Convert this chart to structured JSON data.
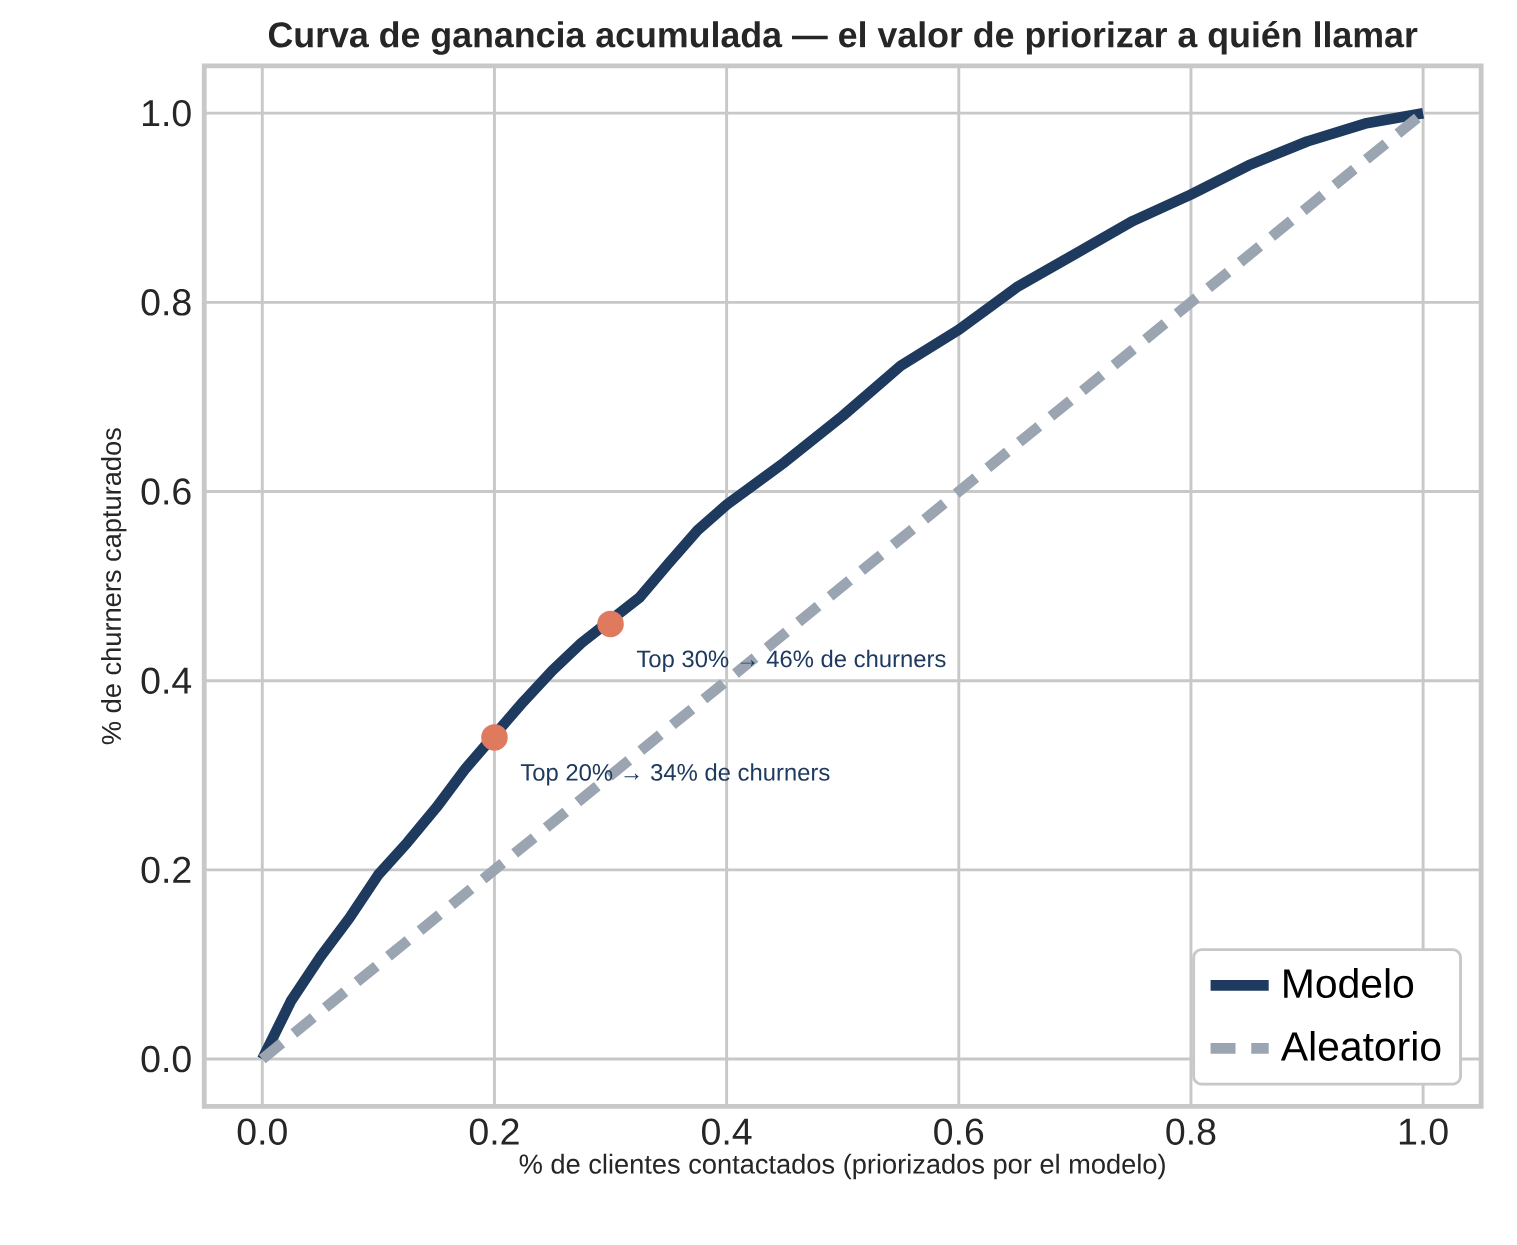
{
  "chart_data": {
    "type": "line",
    "title": "Curva de ganancia acumulada — el valor de priorizar a quién llamar",
    "xlabel": "% de clientes contactados (priorizados por el modelo)",
    "ylabel": "% de churners capturados",
    "xlim": [
      -0.05,
      1.05
    ],
    "ylim": [
      -0.05,
      1.05
    ],
    "xticks": [
      {
        "value": 0,
        "label": "0.0"
      },
      {
        "value": 0.2,
        "label": "0.2"
      },
      {
        "value": 0.4,
        "label": "0.4"
      },
      {
        "value": 0.6,
        "label": "0.6"
      },
      {
        "value": 0.8,
        "label": "0.8"
      },
      {
        "value": 1,
        "label": "1.0"
      }
    ],
    "yticks": [
      {
        "value": 0,
        "label": "0.0"
      },
      {
        "value": 0.2,
        "label": "0.2"
      },
      {
        "value": 0.4,
        "label": "0.4"
      },
      {
        "value": 0.6,
        "label": "0.6"
      },
      {
        "value": 0.8,
        "label": "0.8"
      },
      {
        "value": 1,
        "label": "1.0"
      }
    ],
    "grid": true,
    "legend": "bottom right",
    "series": [
      {
        "name": "Modelo",
        "color": "#1f3a5f",
        "line_style": "solid",
        "x": [
          0,
          0.025,
          0.05,
          0.075,
          0.1,
          0.125,
          0.15,
          0.175,
          0.225,
          0.25,
          0.275,
          0.325,
          0.35,
          0.375,
          0.4,
          0.45,
          0.5,
          0.55,
          0.6,
          0.65,
          0.7,
          0.75,
          0.8,
          0.85,
          0.9,
          0.95,
          1
        ],
        "values": [
          0,
          0.062,
          0.108,
          0.149,
          0.195,
          0.229,
          0.266,
          0.307,
          0.378,
          0.411,
          0.44,
          0.488,
          0.524,
          0.559,
          0.586,
          0.631,
          0.68,
          0.733,
          0.771,
          0.816,
          0.851,
          0.886,
          0.914,
          0.945,
          0.97,
          0.989,
          1
        ]
      },
      {
        "name": "Aleatorio",
        "color": "#9aa5b1",
        "line_style": "dashed",
        "x": [
          0,
          1
        ],
        "values": [
          0,
          1
        ]
      },
      {
        "type": "scatter",
        "color": "#e07a5f",
        "marker": "circle",
        "x": [
          0.2,
          0.3
        ],
        "values": [
          0.34,
          0.46
        ]
      }
    ],
    "annotations": [
      {
        "text": "Top 20% → 34% de churners",
        "x": 0.2,
        "y": 0.34
      },
      {
        "text": "Top 30% → 46% de churners",
        "x": 0.3,
        "y": 0.46
      }
    ]
  }
}
